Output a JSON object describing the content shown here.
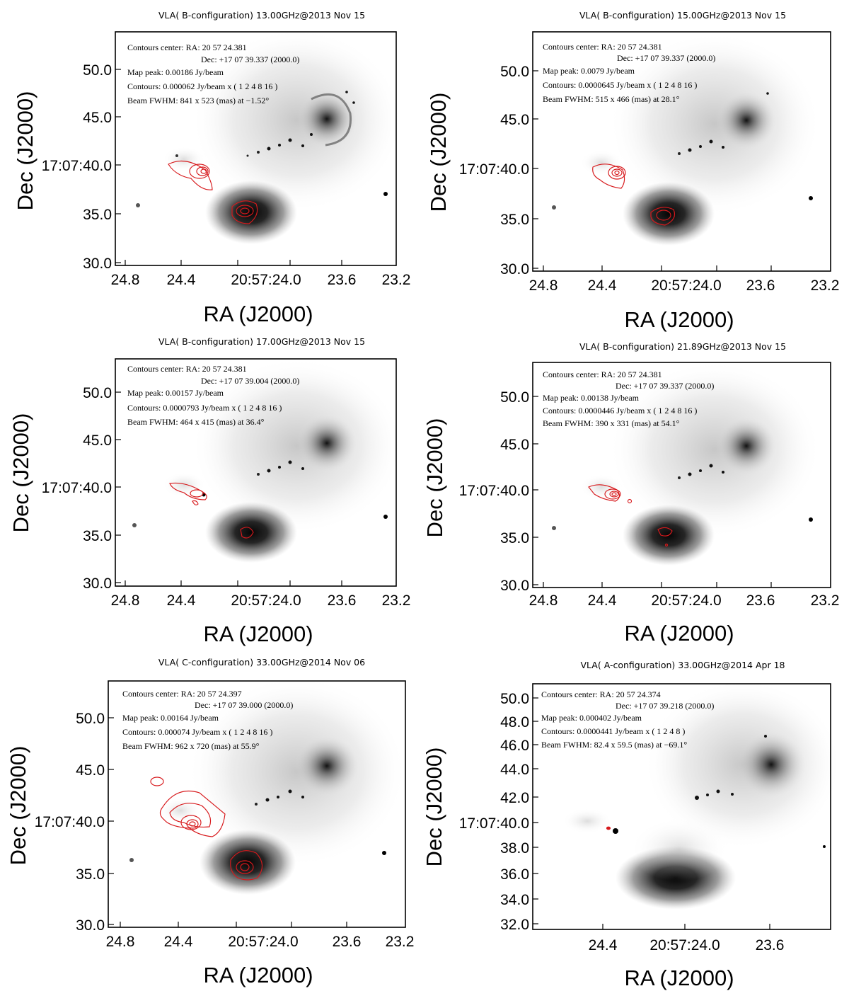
{
  "figure": {
    "panels": [
      {
        "title": "VLA( B-configuration)  13.00GHz@2013 Nov 15",
        "annotations": {
          "center_ra": "Contours center: RA: 20 57 24.381",
          "center_dec": "Dec: +17 07 39.337 (2000.0)",
          "map_peak": "Map peak: 0.00186 Jy/beam",
          "contours": "Contours: 0.000062 Jy/beam x ( 1 2 4 8 16 )",
          "beam": "Beam FWHM: 841 x 523 (mas) at −1.52°"
        },
        "x_ticks": [
          "24.8",
          "24.4",
          "20:57:24.0",
          "23.6",
          "23.2"
        ],
        "y_ticks": [
          "50.0",
          "45.0",
          "17:07:40.0",
          "35.0",
          "30.0"
        ],
        "xlabel": "RA (J2000)",
        "ylabel": "Dec (J2000)"
      },
      {
        "title": "VLA( B-configuration)  15.00GHz@2013 Nov 15",
        "annotations": {
          "center_ra": "Contours center: RA: 20 57 24.381",
          "center_dec": "Dec: +17 07 39.337 (2000.0)",
          "map_peak": "Map peak: 0.0079 Jy/beam",
          "contours": "Contours: 0.0000645 Jy/beam x ( 1 2 4 8 16 )",
          "beam": "Beam FWHM: 515 x 466 (mas) at 28.1°"
        },
        "x_ticks": [
          "24.8",
          "24.4",
          "20:57:24.0",
          "23.6",
          "23.2"
        ],
        "y_ticks": [
          "50.0",
          "45.0",
          "17:07:40.0",
          "35.0",
          "30.0"
        ],
        "xlabel": "RA (J2000)",
        "ylabel": "Dec (J2000)"
      },
      {
        "title": "VLA( B-configuration)  17.00GHz@2013 Nov 15",
        "annotations": {
          "center_ra": "Contours center: RA: 20 57 24.381",
          "center_dec": "Dec: +17 07 39.004 (2000.0)",
          "map_peak": "Map peak: 0.00157 Jy/beam",
          "contours": "Contours: 0.0000793 Jy/beam x ( 1 2 4 8 16 )",
          "beam": "Beam FWHM: 464 x 415 (mas) at 36.4°"
        },
        "x_ticks": [
          "24.8",
          "24.4",
          "20:57:24.0",
          "23.6",
          "23.2"
        ],
        "y_ticks": [
          "50.0",
          "45.0",
          "17:07:40.0",
          "35.0",
          "30.0"
        ],
        "xlabel": "RA (J2000)",
        "ylabel": "Dec (J2000)"
      },
      {
        "title": "VLA( B-configuration)  21.89GHz@2013 Nov 15",
        "annotations": {
          "center_ra": "Contours center: RA: 20 57 24.381",
          "center_dec": "Dec: +17 07 39.337 (2000.0)",
          "map_peak": "Map peak: 0.00138 Jy/beam",
          "contours": "Contours: 0.0000446 Jy/beam x ( 1 2 4 8 16 )",
          "beam": "Beam FWHM: 390 x 331 (mas) at 54.1°"
        },
        "x_ticks": [
          "24.8",
          "24.4",
          "20:57:24.0",
          "23.6",
          "23.2"
        ],
        "y_ticks": [
          "50.0",
          "45.0",
          "17:07:40.0",
          "35.0",
          "30.0"
        ],
        "xlabel": "RA (J2000)",
        "ylabel": "Dec (J2000)"
      },
      {
        "title": "VLA( C-configuration)  33.00GHz@2014 Nov 06",
        "annotations": {
          "center_ra": "Contours center: RA: 20 57 24.397",
          "center_dec": "Dec: +17 07 39.000 (2000.0)",
          "map_peak": "Map peak: 0.00164 Jy/beam",
          "contours": "Contours: 0.000074 Jy/beam x ( 1 2 4 8 16 )",
          "beam": "Beam FWHM: 962 x 720 (mas) at 55.9°"
        },
        "x_ticks": [
          "24.8",
          "24.4",
          "20:57:24.0",
          "23.6",
          "23.2"
        ],
        "y_ticks": [
          "50.0",
          "45.0",
          "17:07:40.0",
          "35.0",
          "30.0"
        ],
        "xlabel": "RA (J2000)",
        "ylabel": "Dec (J2000)"
      },
      {
        "title": "VLA( A-configuration)  33.00GHz@2014 Apr 18",
        "annotations": {
          "center_ra": "Contours center: RA: 20 57 24.374",
          "center_dec": "Dec: +17 07 39.218 (2000.0)",
          "map_peak": "Map peak: 0.000402 Jy/beam",
          "contours": "Contours: 0.0000441 Jy/beam x ( 1 2 4 8 )",
          "beam": "Beam FWHM: 82.4 x 59.5 (mas) at −69.1°"
        },
        "x_ticks": [
          "24.4",
          "20:57:24.0",
          "23.6"
        ],
        "y_ticks": [
          "50.0",
          "48.0",
          "46.0",
          "44.0",
          "42.0",
          "17:07:40.0",
          "38.0",
          "36.0",
          "34.0",
          "32.0"
        ],
        "xlabel": "RA (J2000)",
        "ylabel": "Dec (J2000)"
      }
    ]
  },
  "colors": {
    "contour": "#d7191c",
    "background_image": "greyscale"
  }
}
